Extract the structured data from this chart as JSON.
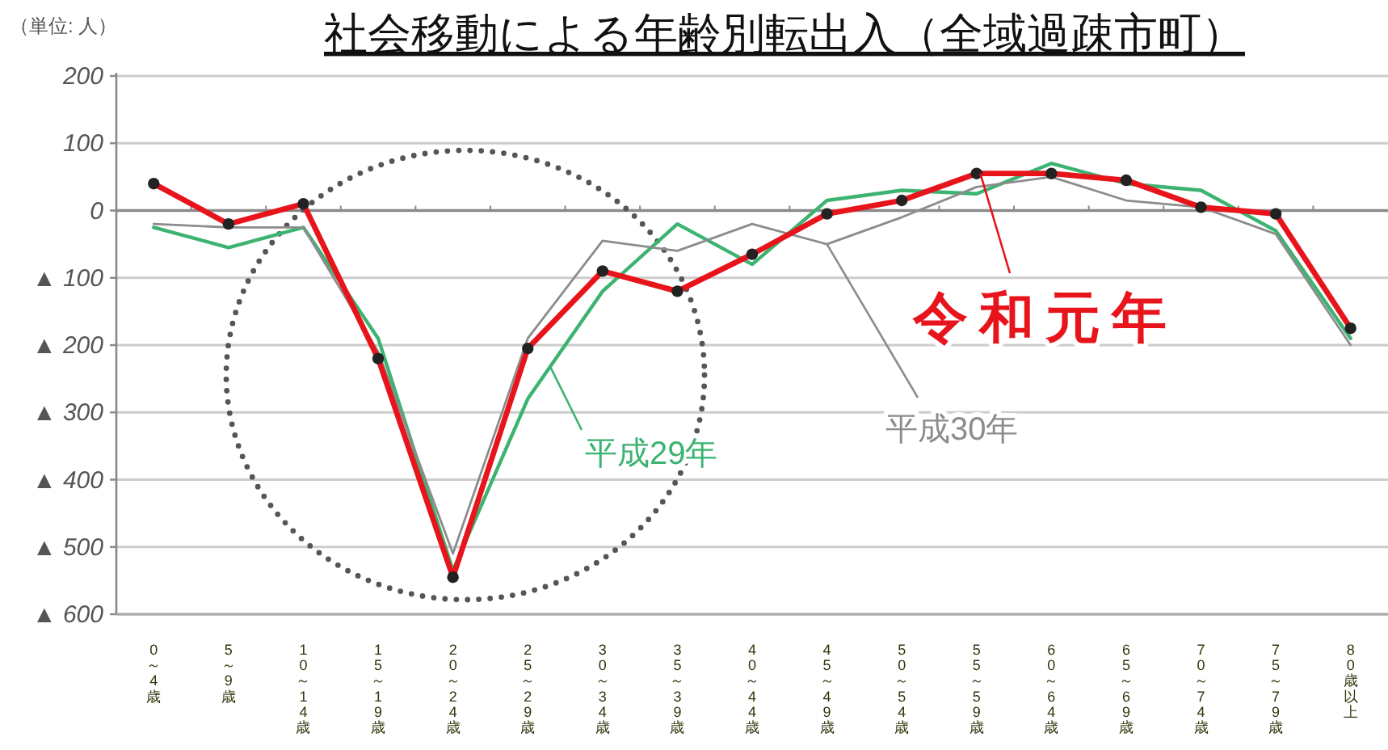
{
  "chart_data": {
    "type": "line",
    "title": "社会移動による年齢別転出入（全域過疎市町）",
    "ylabel": "（単位: 人）",
    "categories": [
      "0～4歳",
      "5～9歳",
      "10～14歳",
      "15～19歳",
      "20～24歳",
      "25～29歳",
      "30～34歳",
      "35～39歳",
      "40～44歳",
      "45～49歳",
      "50～54歳",
      "55～59歳",
      "60～64歳",
      "65～69歳",
      "70～74歳",
      "75～79歳",
      "80歳以上"
    ],
    "series": [
      {
        "name": "平成29年",
        "color": "#3cb371",
        "values": [
          -25,
          -55,
          -25,
          -190,
          -535,
          -280,
          -120,
          -20,
          -80,
          15,
          30,
          25,
          70,
          40,
          30,
          -30,
          -190
        ]
      },
      {
        "name": "平成30年",
        "color": "#8c8c8c",
        "values": [
          -20,
          -25,
          -25,
          -210,
          -510,
          -190,
          -45,
          -60,
          -20,
          -50,
          -10,
          35,
          50,
          15,
          5,
          -35,
          -200
        ]
      },
      {
        "name": "令和元年",
        "color": "#e8141b",
        "marker": "circle",
        "values": [
          40,
          -20,
          10,
          -220,
          -545,
          -205,
          -90,
          -120,
          -65,
          -5,
          15,
          55,
          55,
          45,
          5,
          -5,
          -175
        ]
      }
    ],
    "ylim": [
      -600,
      200
    ],
    "yticks": [
      200,
      100,
      0,
      {
        "value": -100,
        "label": "▲ 100"
      },
      {
        "value": -200,
        "label": "▲ 200"
      },
      {
        "value": -300,
        "label": "▲ 300"
      },
      {
        "value": -400,
        "label": "▲ 400"
      },
      {
        "value": -500,
        "label": "▲ 500"
      },
      {
        "value": -600,
        "label": "▲ 600"
      }
    ],
    "grid": "y",
    "legend": "center"
  }
}
